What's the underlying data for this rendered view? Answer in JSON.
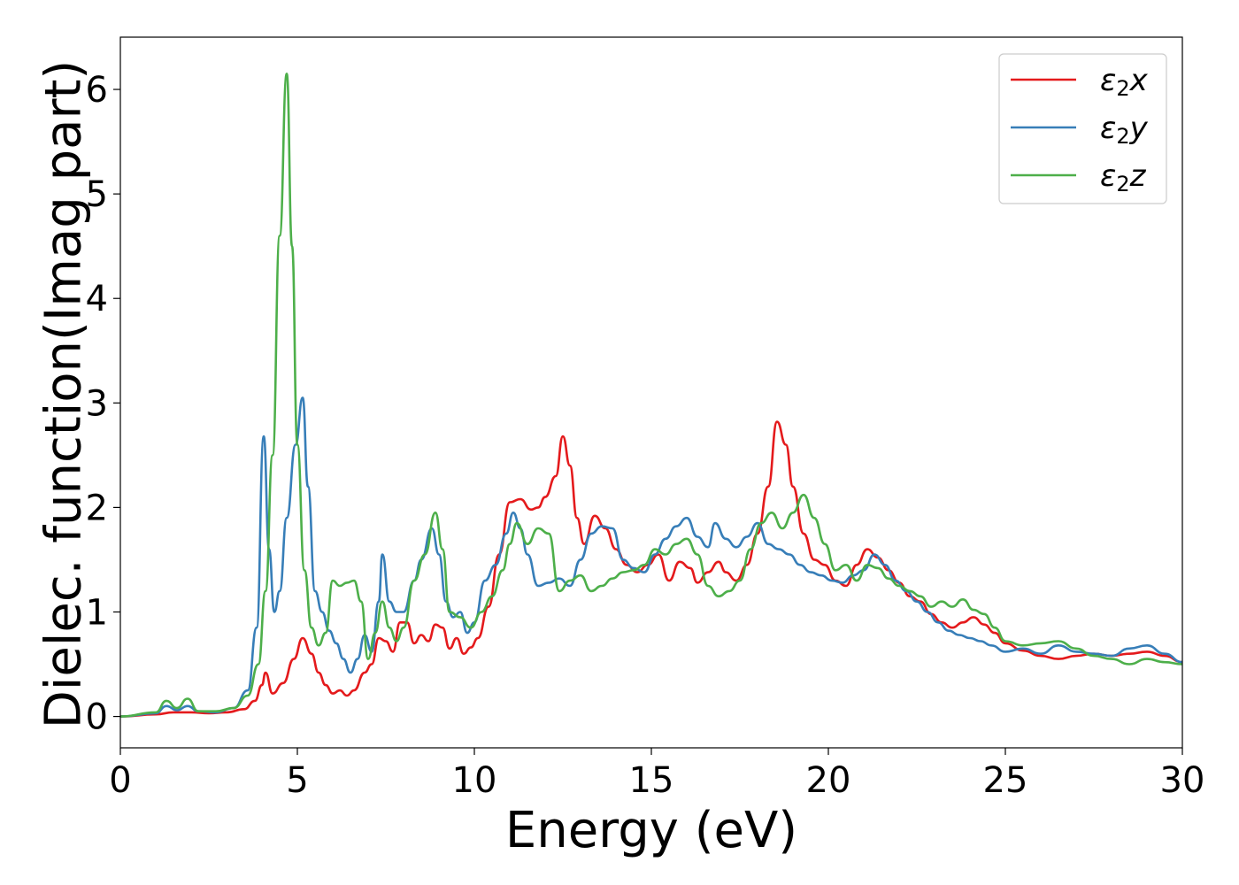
{
  "chart_data": {
    "type": "line",
    "title": "",
    "xlabel": "Energy (eV)",
    "ylabel": "Dielec. function(Imag part)",
    "xlim": [
      0,
      30
    ],
    "ylim": [
      -0.3,
      6.5
    ],
    "xticks": [
      0,
      5,
      10,
      15,
      20,
      25,
      30
    ],
    "yticks": [
      0,
      1,
      2,
      3,
      4,
      5,
      6
    ],
    "grid": false,
    "legend_position": "top-right",
    "series": [
      {
        "name": "ε2x",
        "base": "ε",
        "sub": "2",
        "suffix": "x",
        "color": "#e41a1c",
        "points": [
          [
            0,
            0
          ],
          [
            1,
            0.02
          ],
          [
            1.5,
            0.04
          ],
          [
            2,
            0.04
          ],
          [
            2.5,
            0.03
          ],
          [
            3,
            0.04
          ],
          [
            3.5,
            0.07
          ],
          [
            3.8,
            0.15
          ],
          [
            4.0,
            0.3
          ],
          [
            4.1,
            0.42
          ],
          [
            4.3,
            0.22
          ],
          [
            4.6,
            0.32
          ],
          [
            4.9,
            0.55
          ],
          [
            5.15,
            0.75
          ],
          [
            5.4,
            0.6
          ],
          [
            5.6,
            0.42
          ],
          [
            5.8,
            0.3
          ],
          [
            6.0,
            0.22
          ],
          [
            6.2,
            0.25
          ],
          [
            6.4,
            0.2
          ],
          [
            6.6,
            0.25
          ],
          [
            6.9,
            0.42
          ],
          [
            7.1,
            0.5
          ],
          [
            7.3,
            0.75
          ],
          [
            7.5,
            0.72
          ],
          [
            7.7,
            0.62
          ],
          [
            7.9,
            0.9
          ],
          [
            8.1,
            0.9
          ],
          [
            8.3,
            0.7
          ],
          [
            8.5,
            0.78
          ],
          [
            8.7,
            0.72
          ],
          [
            8.9,
            0.88
          ],
          [
            9.1,
            0.85
          ],
          [
            9.3,
            0.65
          ],
          [
            9.5,
            0.75
          ],
          [
            9.7,
            0.6
          ],
          [
            9.9,
            0.66
          ],
          [
            10.1,
            0.75
          ],
          [
            10.4,
            1.05
          ],
          [
            10.7,
            1.55
          ],
          [
            11.0,
            2.05
          ],
          [
            11.3,
            2.08
          ],
          [
            11.6,
            1.98
          ],
          [
            11.8,
            2.0
          ],
          [
            12.0,
            2.1
          ],
          [
            12.3,
            2.3
          ],
          [
            12.5,
            2.68
          ],
          [
            12.7,
            2.4
          ],
          [
            12.9,
            1.9
          ],
          [
            13.1,
            1.65
          ],
          [
            13.4,
            1.92
          ],
          [
            13.7,
            1.8
          ],
          [
            14.0,
            1.6
          ],
          [
            14.3,
            1.45
          ],
          [
            14.6,
            1.38
          ],
          [
            14.9,
            1.45
          ],
          [
            15.2,
            1.55
          ],
          [
            15.5,
            1.3
          ],
          [
            15.8,
            1.48
          ],
          [
            16.1,
            1.42
          ],
          [
            16.3,
            1.28
          ],
          [
            16.6,
            1.38
          ],
          [
            16.9,
            1.48
          ],
          [
            17.1,
            1.38
          ],
          [
            17.4,
            1.3
          ],
          [
            17.7,
            1.45
          ],
          [
            18.0,
            1.75
          ],
          [
            18.3,
            2.2
          ],
          [
            18.55,
            2.82
          ],
          [
            18.8,
            2.6
          ],
          [
            19.0,
            2.2
          ],
          [
            19.3,
            1.75
          ],
          [
            19.6,
            1.5
          ],
          [
            19.9,
            1.45
          ],
          [
            20.2,
            1.3
          ],
          [
            20.5,
            1.25
          ],
          [
            20.8,
            1.45
          ],
          [
            21.1,
            1.6
          ],
          [
            21.4,
            1.52
          ],
          [
            21.7,
            1.4
          ],
          [
            22.0,
            1.28
          ],
          [
            22.3,
            1.15
          ],
          [
            22.6,
            1.1
          ],
          [
            22.9,
            0.98
          ],
          [
            23.2,
            0.9
          ],
          [
            23.5,
            0.85
          ],
          [
            23.8,
            0.9
          ],
          [
            24.1,
            0.95
          ],
          [
            24.4,
            0.88
          ],
          [
            24.7,
            0.8
          ],
          [
            25.0,
            0.7
          ],
          [
            25.5,
            0.63
          ],
          [
            26.0,
            0.58
          ],
          [
            26.5,
            0.55
          ],
          [
            27.0,
            0.58
          ],
          [
            27.5,
            0.6
          ],
          [
            28.0,
            0.58
          ],
          [
            28.5,
            0.6
          ],
          [
            29.0,
            0.62
          ],
          [
            29.5,
            0.58
          ],
          [
            30.0,
            0.52
          ]
        ]
      },
      {
        "name": "ε2y",
        "base": "ε",
        "sub": "2",
        "suffix": "y",
        "color": "#377eb8",
        "points": [
          [
            0,
            0
          ],
          [
            1,
            0.03
          ],
          [
            1.3,
            0.1
          ],
          [
            1.6,
            0.06
          ],
          [
            1.9,
            0.1
          ],
          [
            2.2,
            0.05
          ],
          [
            2.7,
            0.04
          ],
          [
            3.2,
            0.08
          ],
          [
            3.6,
            0.25
          ],
          [
            3.85,
            0.85
          ],
          [
            4.05,
            2.68
          ],
          [
            4.2,
            1.6
          ],
          [
            4.35,
            1.0
          ],
          [
            4.5,
            1.2
          ],
          [
            4.7,
            1.9
          ],
          [
            4.95,
            2.6
          ],
          [
            5.15,
            3.05
          ],
          [
            5.3,
            2.2
          ],
          [
            5.5,
            1.2
          ],
          [
            5.7,
            1.0
          ],
          [
            5.9,
            0.82
          ],
          [
            6.1,
            0.7
          ],
          [
            6.3,
            0.55
          ],
          [
            6.5,
            0.42
          ],
          [
            6.7,
            0.55
          ],
          [
            6.9,
            0.78
          ],
          [
            7.1,
            0.62
          ],
          [
            7.3,
            1.1
          ],
          [
            7.4,
            1.55
          ],
          [
            7.6,
            1.1
          ],
          [
            7.8,
            1.0
          ],
          [
            8.0,
            1.0
          ],
          [
            8.3,
            1.3
          ],
          [
            8.5,
            1.5
          ],
          [
            8.8,
            1.8
          ],
          [
            9.0,
            1.55
          ],
          [
            9.2,
            1.1
          ],
          [
            9.4,
            0.95
          ],
          [
            9.6,
            1.0
          ],
          [
            9.8,
            0.8
          ],
          [
            10.0,
            0.9
          ],
          [
            10.3,
            1.3
          ],
          [
            10.6,
            1.45
          ],
          [
            10.9,
            1.75
          ],
          [
            11.1,
            1.95
          ],
          [
            11.3,
            1.8
          ],
          [
            11.5,
            1.55
          ],
          [
            11.8,
            1.25
          ],
          [
            12.1,
            1.28
          ],
          [
            12.4,
            1.32
          ],
          [
            12.7,
            1.25
          ],
          [
            13.0,
            1.5
          ],
          [
            13.3,
            1.75
          ],
          [
            13.6,
            1.82
          ],
          [
            13.9,
            1.8
          ],
          [
            14.2,
            1.5
          ],
          [
            14.5,
            1.42
          ],
          [
            14.8,
            1.38
          ],
          [
            15.1,
            1.55
          ],
          [
            15.4,
            1.7
          ],
          [
            15.7,
            1.82
          ],
          [
            16.0,
            1.9
          ],
          [
            16.3,
            1.72
          ],
          [
            16.6,
            1.62
          ],
          [
            16.8,
            1.85
          ],
          [
            17.1,
            1.7
          ],
          [
            17.4,
            1.62
          ],
          [
            17.7,
            1.72
          ],
          [
            18.0,
            1.85
          ],
          [
            18.3,
            1.65
          ],
          [
            18.6,
            1.6
          ],
          [
            18.9,
            1.55
          ],
          [
            19.2,
            1.45
          ],
          [
            19.5,
            1.38
          ],
          [
            19.8,
            1.35
          ],
          [
            20.1,
            1.3
          ],
          [
            20.4,
            1.28
          ],
          [
            20.7,
            1.35
          ],
          [
            21.0,
            1.4
          ],
          [
            21.3,
            1.55
          ],
          [
            21.6,
            1.45
          ],
          [
            21.9,
            1.3
          ],
          [
            22.2,
            1.2
          ],
          [
            22.5,
            1.1
          ],
          [
            22.8,
            1.0
          ],
          [
            23.1,
            0.9
          ],
          [
            23.4,
            0.82
          ],
          [
            23.7,
            0.78
          ],
          [
            24.0,
            0.75
          ],
          [
            24.3,
            0.72
          ],
          [
            24.6,
            0.68
          ],
          [
            25.0,
            0.62
          ],
          [
            25.5,
            0.65
          ],
          [
            26.0,
            0.6
          ],
          [
            26.5,
            0.68
          ],
          [
            27.0,
            0.62
          ],
          [
            27.5,
            0.6
          ],
          [
            28.0,
            0.58
          ],
          [
            28.5,
            0.65
          ],
          [
            29.0,
            0.68
          ],
          [
            29.5,
            0.6
          ],
          [
            30.0,
            0.52
          ]
        ]
      },
      {
        "name": "ε2z",
        "base": "ε",
        "sub": "2",
        "suffix": "z",
        "color": "#4daf4a",
        "points": [
          [
            0,
            0
          ],
          [
            1,
            0.04
          ],
          [
            1.3,
            0.15
          ],
          [
            1.6,
            0.08
          ],
          [
            1.9,
            0.17
          ],
          [
            2.2,
            0.05
          ],
          [
            2.7,
            0.05
          ],
          [
            3.2,
            0.08
          ],
          [
            3.6,
            0.2
          ],
          [
            3.9,
            0.5
          ],
          [
            4.1,
            1.2
          ],
          [
            4.3,
            2.5
          ],
          [
            4.5,
            4.6
          ],
          [
            4.7,
            6.15
          ],
          [
            4.85,
            4.5
          ],
          [
            5.0,
            2.6
          ],
          [
            5.2,
            1.4
          ],
          [
            5.4,
            0.85
          ],
          [
            5.6,
            0.68
          ],
          [
            5.8,
            0.8
          ],
          [
            6.0,
            1.3
          ],
          [
            6.2,
            1.25
          ],
          [
            6.4,
            1.28
          ],
          [
            6.6,
            1.3
          ],
          [
            6.8,
            1.1
          ],
          [
            7.0,
            0.55
          ],
          [
            7.2,
            0.8
          ],
          [
            7.4,
            1.1
          ],
          [
            7.6,
            0.85
          ],
          [
            7.8,
            0.72
          ],
          [
            8.0,
            0.85
          ],
          [
            8.3,
            1.3
          ],
          [
            8.6,
            1.55
          ],
          [
            8.9,
            1.95
          ],
          [
            9.1,
            1.6
          ],
          [
            9.3,
            1.0
          ],
          [
            9.6,
            0.95
          ],
          [
            9.9,
            0.85
          ],
          [
            10.2,
            1.0
          ],
          [
            10.5,
            1.15
          ],
          [
            10.8,
            1.4
          ],
          [
            11.0,
            1.65
          ],
          [
            11.2,
            1.85
          ],
          [
            11.5,
            1.65
          ],
          [
            11.8,
            1.8
          ],
          [
            12.1,
            1.75
          ],
          [
            12.4,
            1.2
          ],
          [
            12.7,
            1.3
          ],
          [
            13.0,
            1.35
          ],
          [
            13.3,
            1.2
          ],
          [
            13.6,
            1.25
          ],
          [
            13.9,
            1.32
          ],
          [
            14.2,
            1.38
          ],
          [
            14.5,
            1.4
          ],
          [
            14.8,
            1.45
          ],
          [
            15.1,
            1.6
          ],
          [
            15.4,
            1.55
          ],
          [
            15.7,
            1.65
          ],
          [
            16.0,
            1.7
          ],
          [
            16.3,
            1.55
          ],
          [
            16.6,
            1.25
          ],
          [
            16.9,
            1.15
          ],
          [
            17.2,
            1.2
          ],
          [
            17.5,
            1.3
          ],
          [
            17.8,
            1.6
          ],
          [
            18.1,
            1.85
          ],
          [
            18.4,
            1.95
          ],
          [
            18.7,
            1.8
          ],
          [
            19.0,
            1.95
          ],
          [
            19.3,
            2.12
          ],
          [
            19.6,
            1.9
          ],
          [
            19.9,
            1.65
          ],
          [
            20.2,
            1.4
          ],
          [
            20.5,
            1.45
          ],
          [
            20.8,
            1.3
          ],
          [
            21.1,
            1.45
          ],
          [
            21.4,
            1.42
          ],
          [
            21.7,
            1.32
          ],
          [
            22.0,
            1.25
          ],
          [
            22.3,
            1.2
          ],
          [
            22.6,
            1.15
          ],
          [
            22.9,
            1.05
          ],
          [
            23.2,
            1.1
          ],
          [
            23.5,
            1.05
          ],
          [
            23.8,
            1.12
          ],
          [
            24.1,
            1.02
          ],
          [
            24.4,
            0.98
          ],
          [
            24.7,
            0.85
          ],
          [
            25.0,
            0.72
          ],
          [
            25.5,
            0.68
          ],
          [
            26.0,
            0.7
          ],
          [
            26.5,
            0.72
          ],
          [
            27.0,
            0.65
          ],
          [
            27.5,
            0.58
          ],
          [
            28.0,
            0.55
          ],
          [
            28.5,
            0.5
          ],
          [
            29.0,
            0.55
          ],
          [
            29.5,
            0.52
          ],
          [
            30.0,
            0.5
          ]
        ]
      }
    ]
  }
}
